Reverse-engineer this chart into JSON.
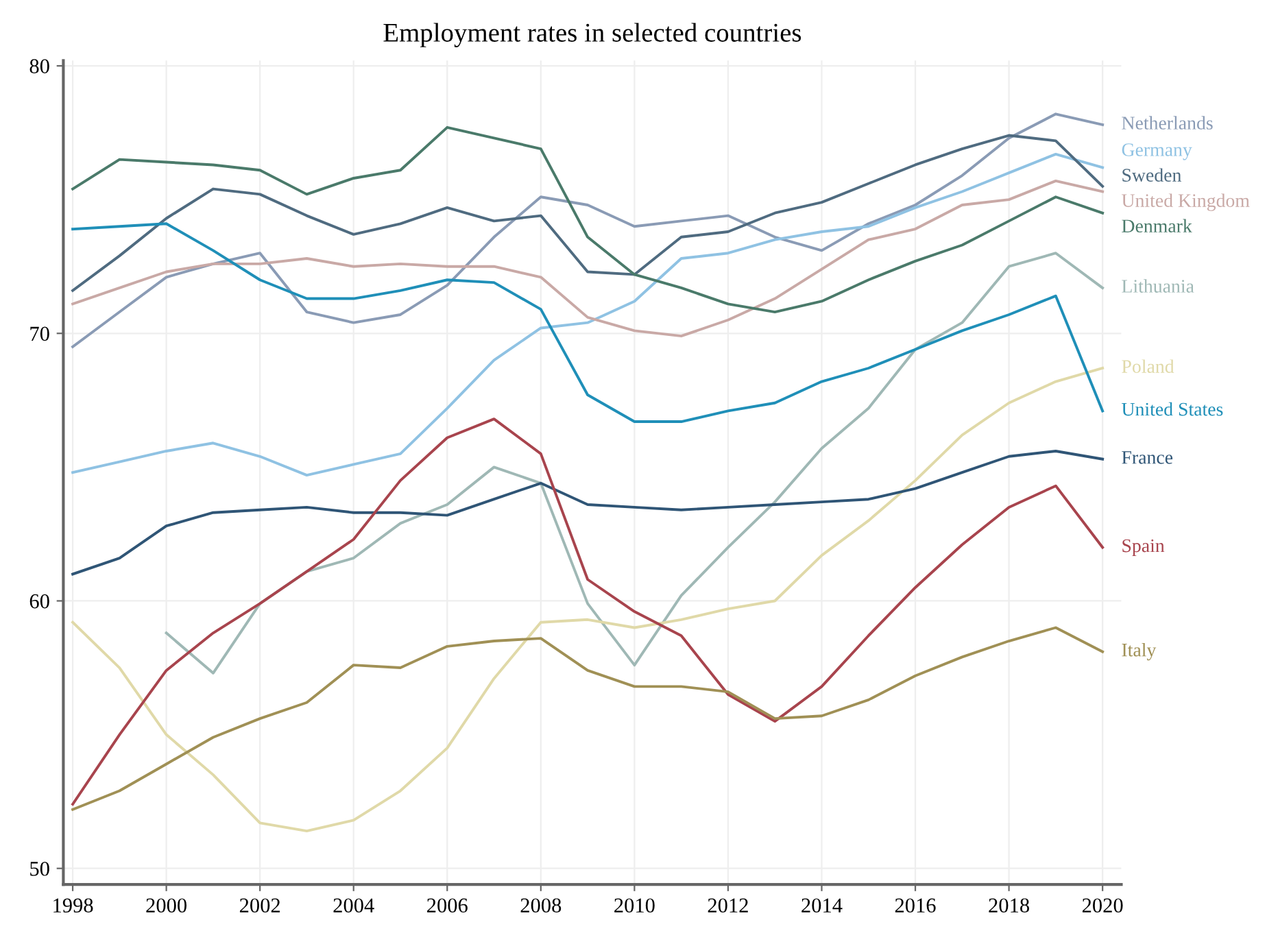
{
  "chart_data": {
    "type": "line",
    "title": "Employment rates in selected countries",
    "x": [
      1998,
      1999,
      2000,
      2001,
      2002,
      2003,
      2004,
      2005,
      2006,
      2007,
      2008,
      2009,
      2010,
      2011,
      2012,
      2013,
      2014,
      2015,
      2016,
      2017,
      2018,
      2019,
      2020
    ],
    "xlim": [
      1997.8,
      2020.4
    ],
    "xticks": [
      1998,
      2000,
      2002,
      2004,
      2006,
      2008,
      2010,
      2012,
      2014,
      2016,
      2018,
      2020
    ],
    "ylim": [
      49.4,
      80.2
    ],
    "yticks": [
      50,
      60,
      70,
      80
    ],
    "grid": true,
    "legend": false,
    "marker": "none",
    "line_style": "solid",
    "series": [
      {
        "name": "Netherlands",
        "color": "#8a9bb5",
        "values": [
          69.5,
          70.8,
          72.1,
          72.6,
          73.0,
          70.8,
          70.4,
          70.7,
          71.8,
          73.6,
          75.1,
          74.8,
          74.0,
          74.2,
          74.4,
          73.6,
          73.1,
          74.1,
          74.8,
          75.9,
          77.3,
          78.2,
          77.8
        ]
      },
      {
        "name": "Germany",
        "color": "#8fc2e3",
        "values": [
          64.8,
          65.2,
          65.6,
          65.9,
          65.4,
          64.7,
          65.1,
          65.5,
          67.2,
          69.0,
          70.2,
          70.4,
          71.2,
          72.8,
          73.0,
          73.5,
          73.8,
          74.0,
          74.7,
          75.3,
          76.0,
          76.7,
          76.2
        ]
      },
      {
        "name": "Sweden",
        "color": "#4f6b80",
        "values": [
          71.6,
          72.9,
          74.3,
          75.4,
          75.2,
          74.4,
          73.7,
          74.1,
          74.7,
          74.2,
          74.4,
          72.3,
          72.2,
          73.6,
          73.8,
          74.5,
          74.9,
          75.6,
          76.3,
          76.9,
          77.4,
          77.2,
          75.5
        ]
      },
      {
        "name": "United Kingdom",
        "color": "#c9a9a6",
        "values": [
          71.1,
          71.7,
          72.3,
          72.6,
          72.6,
          72.8,
          72.5,
          72.6,
          72.5,
          72.5,
          72.1,
          70.6,
          70.1,
          69.9,
          70.5,
          71.3,
          72.4,
          73.5,
          73.9,
          74.8,
          75.0,
          75.7,
          75.3
        ]
      },
      {
        "name": "Denmark",
        "color": "#4a7a6a",
        "values": [
          75.4,
          76.5,
          76.4,
          76.3,
          76.1,
          75.2,
          75.8,
          76.1,
          77.7,
          77.3,
          76.9,
          73.6,
          72.2,
          71.7,
          71.1,
          70.8,
          71.2,
          72.0,
          72.7,
          73.3,
          74.2,
          75.1,
          74.5
        ]
      },
      {
        "name": "Lithuania",
        "color": "#9fb8b5",
        "values": [
          null,
          null,
          58.8,
          57.3,
          59.9,
          61.1,
          61.6,
          62.9,
          63.6,
          65.0,
          64.4,
          59.9,
          57.6,
          60.2,
          62.0,
          63.7,
          65.7,
          67.2,
          69.4,
          70.4,
          72.5,
          73.0,
          71.7
        ]
      },
      {
        "name": "Poland",
        "color": "#e0d9a8",
        "values": [
          59.2,
          57.5,
          55.0,
          53.5,
          51.7,
          51.4,
          51.8,
          52.9,
          54.5,
          57.1,
          59.2,
          59.3,
          59.0,
          59.3,
          59.7,
          60.0,
          61.7,
          63.0,
          64.5,
          66.2,
          67.4,
          68.2,
          68.7
        ]
      },
      {
        "name": "United States",
        "color": "#1f8fb8",
        "values": [
          73.9,
          74.0,
          74.1,
          73.1,
          72.0,
          71.3,
          71.3,
          71.6,
          72.0,
          71.9,
          70.9,
          67.7,
          66.7,
          66.7,
          67.1,
          67.4,
          68.2,
          68.7,
          69.4,
          70.1,
          70.7,
          71.4,
          67.1
        ]
      },
      {
        "name": "France",
        "color": "#2f5576",
        "values": [
          61.0,
          61.6,
          62.8,
          63.3,
          63.4,
          63.5,
          63.3,
          63.3,
          63.2,
          63.8,
          64.4,
          63.6,
          63.5,
          63.4,
          63.5,
          63.6,
          63.7,
          63.8,
          64.2,
          64.8,
          65.4,
          65.6,
          65.3
        ]
      },
      {
        "name": "Spain",
        "color": "#a8444d",
        "values": [
          52.4,
          55.0,
          57.4,
          58.8,
          59.9,
          61.1,
          62.3,
          64.5,
          66.1,
          66.8,
          65.5,
          60.8,
          59.6,
          58.7,
          56.5,
          55.5,
          56.8,
          58.7,
          60.5,
          62.1,
          63.5,
          64.3,
          62.0
        ]
      },
      {
        "name": "Italy",
        "color": "#a09055",
        "values": [
          52.2,
          52.9,
          53.9,
          54.9,
          55.6,
          56.2,
          57.6,
          57.5,
          58.3,
          58.5,
          58.6,
          57.4,
          56.8,
          56.8,
          56.6,
          55.6,
          55.7,
          56.3,
          57.2,
          57.9,
          58.5,
          59.0,
          58.1
        ]
      }
    ]
  }
}
